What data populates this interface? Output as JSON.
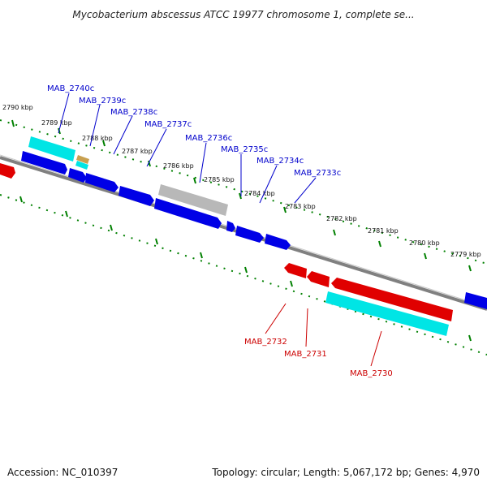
{
  "title": "Mycobacterium abscessus ATCC 19977 chromosome 1, complete se...",
  "footer": {
    "accession": "Accession: NC_010397",
    "summary": "Topology: circular; Length: 5,067,172 bp; Genes: 4,970"
  },
  "colors": {
    "forward_gene": "#0000e6",
    "reverse_gene": "#e00000",
    "cds_forward": "#00e5e5",
    "cds_reverse": "#00e5e5",
    "pseudo": "#b8b8b8",
    "other": "#c8a050",
    "backbone": "#808080",
    "tick": "#008000",
    "label_forward": "#0000cc",
    "label_reverse": "#cc0000"
  },
  "ticks": [
    "2790 kbp",
    "2789 kbp",
    "2788 kbp",
    "2787 kbp",
    "2786 kbp",
    "2785 kbp",
    "2784 kbp",
    "2783 kbp",
    "2782 kbp",
    "2781 kbp",
    "2780 kbp",
    "2779 kbp"
  ],
  "forward_labels": [
    "MAB_2740c",
    "MAB_2739c",
    "MAB_2738c",
    "MAB_2737c",
    "MAB_2736c",
    "MAB_2735c",
    "MAB_2734c",
    "MAB_2733c"
  ],
  "reverse_labels": [
    "MAB_2732",
    "MAB_2731",
    "MAB_2730"
  ]
}
